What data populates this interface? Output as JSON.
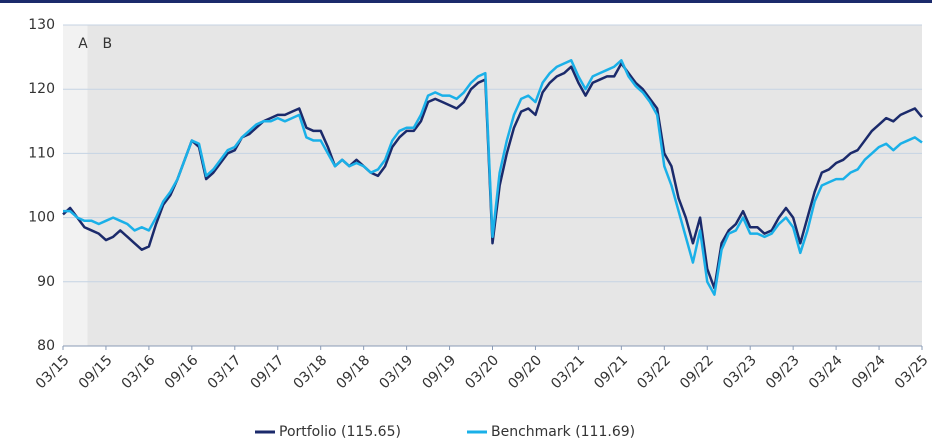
{
  "chart_data": {
    "type": "line",
    "categories": [
      "03/15",
      null,
      null,
      null,
      null,
      null,
      "09/15",
      null,
      null,
      null,
      null,
      null,
      "03/16",
      null,
      null,
      null,
      null,
      null,
      "09/16",
      null,
      null,
      null,
      null,
      null,
      "03/17",
      null,
      null,
      null,
      null,
      null,
      "09/17",
      null,
      null,
      null,
      null,
      null,
      "03/18",
      null,
      null,
      null,
      null,
      null,
      "09/18",
      null,
      null,
      null,
      null,
      null,
      "03/19",
      null,
      null,
      null,
      null,
      null,
      "09/19",
      null,
      null,
      null,
      null,
      null,
      "03/20",
      null,
      null,
      null,
      null,
      null,
      "09/20",
      null,
      null,
      null,
      null,
      null,
      "03/21",
      null,
      null,
      null,
      null,
      null,
      "09/21",
      null,
      null,
      null,
      null,
      null,
      "03/22",
      null,
      null,
      null,
      null,
      null,
      "09/22",
      null,
      null,
      null,
      null,
      null,
      "03/23",
      null,
      null,
      null,
      null,
      null,
      "09/23",
      null,
      null,
      null,
      null,
      null,
      "03/24",
      null,
      null,
      null,
      null,
      null,
      "09/24",
      null,
      null,
      null,
      null,
      null,
      "03/25"
    ],
    "series": [
      {
        "name": "Portfolio (115.65)",
        "color": "#1b2a6b",
        "values": [
          100.5,
          101.5,
          100,
          98.5,
          98,
          97.5,
          96.5,
          97,
          98,
          97,
          96,
          95,
          95.5,
          99,
          102,
          103.5,
          106,
          109,
          112,
          111,
          106,
          107,
          108.5,
          110,
          110.5,
          112.5,
          113,
          114,
          115,
          115.5,
          116,
          116,
          116.5,
          117,
          114,
          113.5,
          113.5,
          111,
          108,
          109,
          108,
          109,
          108,
          107,
          106.5,
          108,
          111,
          112.5,
          113.5,
          113.5,
          115,
          118,
          118.5,
          118,
          117.5,
          117,
          118,
          120,
          121,
          121.5,
          96,
          105,
          110,
          114,
          116.5,
          117,
          116,
          119.5,
          121,
          122,
          122.5,
          123.5,
          121,
          119,
          121,
          121.5,
          122,
          122,
          124,
          122.5,
          121,
          120,
          118.5,
          117,
          110,
          108,
          103,
          100,
          96,
          100,
          92,
          89,
          96,
          98,
          99,
          101,
          98.5,
          98.5,
          97.5,
          98,
          100,
          101.5,
          100,
          96,
          100,
          104,
          107,
          107.5,
          108.5,
          109,
          110,
          110.5,
          112,
          113.5,
          114.5,
          115.5,
          115,
          116,
          116.5,
          117,
          115.65
        ]
      },
      {
        "name": "Benchmark (111.69)",
        "color": "#1ab0e8",
        "values": [
          101,
          101,
          100,
          99.5,
          99.5,
          99,
          99.5,
          100,
          99.5,
          99,
          98,
          98.5,
          98,
          100,
          102.5,
          104,
          106,
          109,
          112,
          111.5,
          106.5,
          107.5,
          109,
          110.5,
          111,
          112.5,
          113.5,
          114.5,
          115,
          115,
          115.5,
          115,
          115.5,
          116,
          112.5,
          112,
          112,
          110,
          108,
          109,
          108,
          108.5,
          108,
          107,
          107.5,
          109,
          112,
          113.5,
          114,
          114,
          116,
          119,
          119.5,
          119,
          119,
          118.5,
          119.5,
          121,
          122,
          122.5,
          97,
          107,
          112,
          116,
          118.5,
          119,
          118,
          121,
          122.5,
          123.5,
          124,
          124.5,
          122,
          120,
          122,
          122.5,
          123,
          123.5,
          124.5,
          122,
          120.5,
          119.5,
          118,
          116,
          108,
          105,
          101,
          97,
          93,
          98,
          90,
          88,
          95,
          97.5,
          98,
          100,
          97.5,
          97.5,
          97,
          97.5,
          99,
          100,
          98.5,
          94.5,
          98,
          102.5,
          105,
          105.5,
          106,
          106,
          107,
          107.5,
          109,
          110,
          111,
          111.5,
          110.5,
          111.5,
          112,
          112.5,
          111.69
        ]
      }
    ],
    "regions": [
      {
        "label": "A",
        "start": 0,
        "end": 3.4,
        "color": "#f2f2f2"
      },
      {
        "label": "B",
        "start": 3.4,
        "end": 120,
        "color": "#e6e6e6"
      }
    ],
    "ylim": [
      80,
      130
    ],
    "yticks": [
      80,
      90,
      100,
      110,
      120,
      130
    ],
    "grid": true,
    "legend": "bottom"
  }
}
